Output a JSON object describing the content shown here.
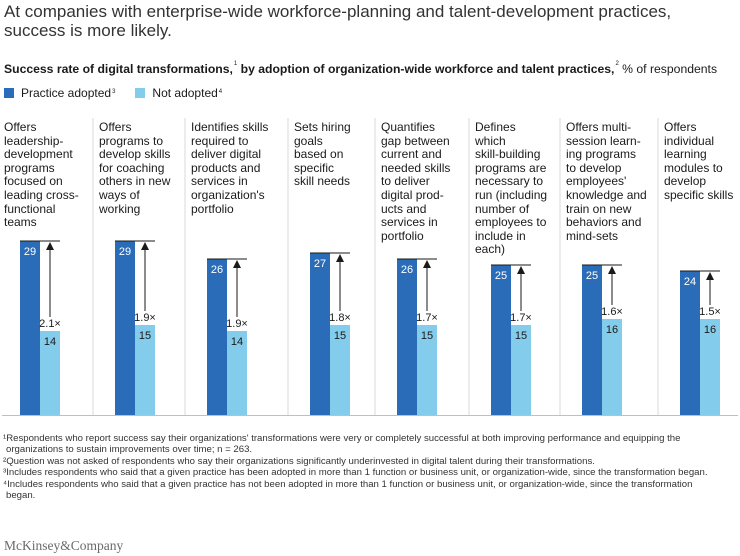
{
  "headline": "At companies with enterprise-wide workforce-planning and talent-development practices, success is more likely.",
  "subtitle": {
    "main": "Success rate of digital transformations,",
    "fn1": "1",
    "middle": " by adoption of organization-wide workforce and talent practices,",
    "fn2": "2",
    "unit": " % of respondents"
  },
  "legend": [
    {
      "label": "Practice adopted",
      "fn": "3",
      "color": "#2b6cb8"
    },
    {
      "label": "Not adopted",
      "fn": "4",
      "color": "#83ccec"
    }
  ],
  "chart_data": {
    "type": "bar",
    "title": "Success rate of digital transformations, by adoption of organization-wide workforce and talent practices, % of respondents",
    "categories": [
      "Offers leadership-development programs focused on leading cross-functional teams",
      "Offers programs to develop skills for coaching others in new ways of working",
      "Identifies skills required to deliver digital products and services in organization's portfolio",
      "Sets hiring goals based on specific skill needs",
      "Quantifies gap between current and needed skills to deliver digital prod-ucts and services in portfolio",
      "Defines which skill-building programs are necessary to run (including number of employees to include in each)",
      "Offers multi-session learn-ing programs to develop employees' knowledge and train on new behaviors and mind-sets",
      "Offers individual learning modules to develop specific skills"
    ],
    "category_lines": [
      [
        "Offers",
        "leadership-",
        "development",
        "programs",
        "focused on",
        "leading cross-",
        "functional",
        "teams"
      ],
      [
        "Offers",
        "programs to",
        "develop skills",
        "for coaching",
        "others in new",
        "ways of",
        "working"
      ],
      [
        "Identifies skills",
        "required to",
        "deliver digital",
        "products and",
        "services in",
        "organization's",
        "portfolio"
      ],
      [
        "Sets hiring",
        "goals",
        "based on",
        "specific",
        "skill needs"
      ],
      [
        "Quantifies",
        "gap between",
        "current and",
        "needed skills",
        "to deliver",
        "digital prod-",
        "ucts and",
        "services in",
        "portfolio"
      ],
      [
        "Defines",
        "which",
        "skill-building",
        "programs are",
        "necessary to",
        "run (including",
        "number of",
        "employees to",
        "include in",
        "each)"
      ],
      [
        "Offers multi-",
        "session learn-",
        "ing programs",
        "to develop",
        "employees'",
        "knowledge and",
        "train on new",
        "behaviors and",
        "mind-sets"
      ],
      [
        "Offers",
        "individual",
        "learning",
        "modules to",
        "develop",
        "specific skills"
      ]
    ],
    "series": [
      {
        "name": "Practice adopted",
        "values": [
          29,
          29,
          26,
          27,
          26,
          25,
          25,
          24
        ]
      },
      {
        "name": "Not adopted",
        "values": [
          14,
          15,
          14,
          15,
          15,
          15,
          16,
          16
        ]
      }
    ],
    "multipliers": [
      "2.1×",
      "1.9×",
      "1.9×",
      "1.8×",
      "1.7×",
      "1.7×",
      "1.6×",
      "1.5×"
    ],
    "ylim": [
      0,
      29
    ]
  },
  "footnotes": [
    "¹Respondents who report success say their organizations' transformations were very or completely successful at both improving performance and equipping the organizations to sustain improvements over time; n = 263.",
    "²Question was not asked of respondents who say their organizations significantly underinvested in digital talent during their transformations.",
    "³Includes respondents who said that a given practice has been adopted in more than 1 function or business unit, or organization-wide, since the transformation began.",
    "⁴Includes respondents who said that a given practice has not been adopted in more than 1 function or business unit, or organization-wide, since the transformation began."
  ],
  "brand": "McKinsey&Company"
}
